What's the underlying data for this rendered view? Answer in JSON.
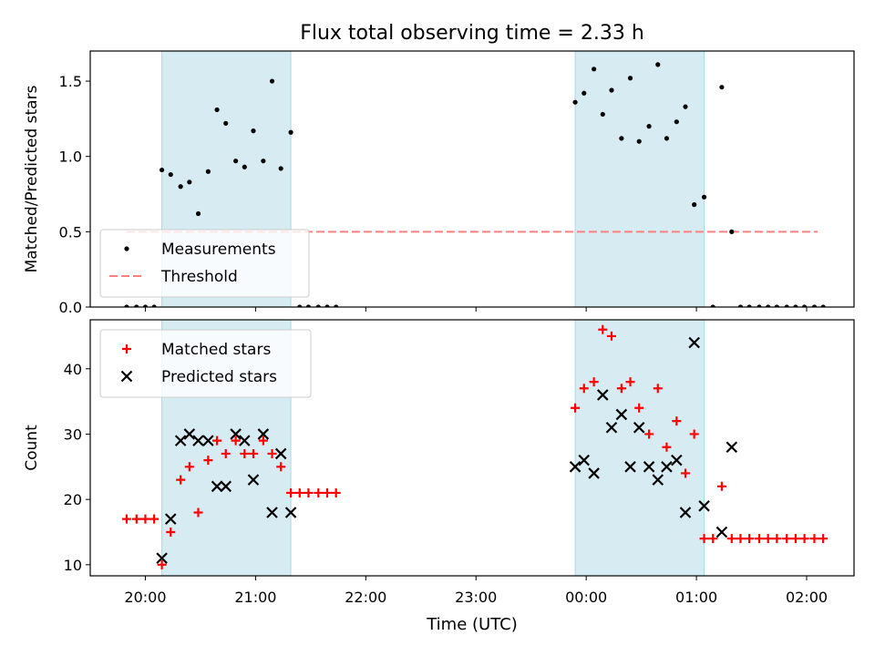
{
  "chart_data": {
    "title": "Flux total observing time = 2.33 h",
    "xlabel": "Time (UTC)",
    "x_unit": "hours",
    "xlim": [
      19.5,
      26.43
    ],
    "xticks": [
      {
        "value": 20,
        "label": "20:00"
      },
      {
        "value": 21,
        "label": "21:00"
      },
      {
        "value": 22,
        "label": "22:00"
      },
      {
        "value": 23,
        "label": "23:00"
      },
      {
        "value": 24,
        "label": "00:00"
      },
      {
        "value": 25,
        "label": "01:00"
      },
      {
        "value": 26,
        "label": "02:00"
      }
    ],
    "shaded_intervals": [
      [
        20.15,
        21.32
      ],
      [
        23.9,
        25.07
      ]
    ],
    "shade_color": "#add8e6",
    "panels": [
      {
        "type": "scatter",
        "ylabel": "Matched/Predicted stars",
        "ylim": [
          0,
          1.7
        ],
        "yticks": [
          0,
          0.5,
          1.0,
          1.5
        ],
        "ytick_labels": [
          "0.0",
          "0.5",
          "1.0",
          "1.5"
        ],
        "threshold": {
          "value": 0.5,
          "x_range": [
            19.83,
            26.1
          ],
          "color": "#ff8080"
        },
        "legend": {
          "position": "lower-left",
          "entries": [
            "Measurements",
            "Threshold"
          ]
        },
        "series": [
          {
            "name": "Measurements",
            "marker": "dot",
            "color": "#000000",
            "points": [
              [
                19.83,
                0
              ],
              [
                19.92,
                0
              ],
              [
                20.0,
                0
              ],
              [
                20.08,
                0
              ],
              [
                20.15,
                0.91
              ],
              [
                20.23,
                0.88
              ],
              [
                20.32,
                0.8
              ],
              [
                20.4,
                0.83
              ],
              [
                20.48,
                0.62
              ],
              [
                20.57,
                0.9
              ],
              [
                20.65,
                1.31
              ],
              [
                20.73,
                1.22
              ],
              [
                20.82,
                0.97
              ],
              [
                20.9,
                0.93
              ],
              [
                20.98,
                1.17
              ],
              [
                21.07,
                0.97
              ],
              [
                21.15,
                1.5
              ],
              [
                21.23,
                0.92
              ],
              [
                21.32,
                1.16
              ],
              [
                21.4,
                0
              ],
              [
                21.48,
                0
              ],
              [
                21.57,
                0
              ],
              [
                21.65,
                0
              ],
              [
                21.73,
                0
              ],
              [
                23.9,
                1.36
              ],
              [
                23.98,
                1.42
              ],
              [
                24.07,
                1.58
              ],
              [
                24.15,
                1.28
              ],
              [
                24.23,
                1.44
              ],
              [
                24.32,
                1.12
              ],
              [
                24.4,
                1.52
              ],
              [
                24.48,
                1.1
              ],
              [
                24.57,
                1.2
              ],
              [
                24.65,
                1.61
              ],
              [
                24.73,
                1.12
              ],
              [
                24.82,
                1.23
              ],
              [
                24.9,
                1.33
              ],
              [
                24.98,
                0.68
              ],
              [
                25.07,
                0.73
              ],
              [
                25.15,
                0
              ],
              [
                25.23,
                1.46
              ],
              [
                25.32,
                0.5
              ],
              [
                25.4,
                0
              ],
              [
                25.48,
                0
              ],
              [
                25.57,
                0
              ],
              [
                25.65,
                0
              ],
              [
                25.73,
                0
              ],
              [
                25.82,
                0
              ],
              [
                25.9,
                0
              ],
              [
                25.98,
                0
              ],
              [
                26.07,
                0
              ],
              [
                26.15,
                0
              ]
            ]
          }
        ]
      },
      {
        "type": "scatter",
        "ylabel": "Count",
        "ylim": [
          8.3,
          47.5
        ],
        "yticks": [
          10,
          20,
          30,
          40
        ],
        "ytick_labels": [
          "10",
          "20",
          "30",
          "40"
        ],
        "legend": {
          "position": "upper-left",
          "entries": [
            "Matched stars",
            "Predicted stars"
          ]
        },
        "series": [
          {
            "name": "Matched stars",
            "marker": "plus",
            "color": "#ff0000",
            "points": [
              [
                19.83,
                17
              ],
              [
                19.92,
                17
              ],
              [
                20.0,
                17
              ],
              [
                20.08,
                17
              ],
              [
                20.15,
                10
              ],
              [
                20.23,
                15
              ],
              [
                20.32,
                23
              ],
              [
                20.4,
                25
              ],
              [
                20.48,
                18
              ],
              [
                20.57,
                26
              ],
              [
                20.65,
                29
              ],
              [
                20.73,
                27
              ],
              [
                20.82,
                29
              ],
              [
                20.9,
                27
              ],
              [
                20.98,
                27
              ],
              [
                21.07,
                29
              ],
              [
                21.15,
                27
              ],
              [
                21.23,
                25
              ],
              [
                21.32,
                21
              ],
              [
                21.4,
                21
              ],
              [
                21.48,
                21
              ],
              [
                21.57,
                21
              ],
              [
                21.65,
                21
              ],
              [
                21.73,
                21
              ],
              [
                23.9,
                34
              ],
              [
                23.98,
                37
              ],
              [
                24.07,
                38
              ],
              [
                24.15,
                46
              ],
              [
                24.23,
                45
              ],
              [
                24.32,
                37
              ],
              [
                24.4,
                38
              ],
              [
                24.48,
                34
              ],
              [
                24.57,
                30
              ],
              [
                24.65,
                37
              ],
              [
                24.73,
                28
              ],
              [
                24.82,
                32
              ],
              [
                24.9,
                24
              ],
              [
                24.98,
                30
              ],
              [
                25.07,
                14
              ],
              [
                25.15,
                14
              ],
              [
                25.23,
                22
              ],
              [
                25.32,
                14
              ],
              [
                25.4,
                14
              ],
              [
                25.48,
                14
              ],
              [
                25.57,
                14
              ],
              [
                25.65,
                14
              ],
              [
                25.73,
                14
              ],
              [
                25.82,
                14
              ],
              [
                25.9,
                14
              ],
              [
                25.98,
                14
              ],
              [
                26.07,
                14
              ],
              [
                26.15,
                14
              ]
            ]
          },
          {
            "name": "Predicted stars",
            "marker": "x",
            "color": "#000000",
            "points": [
              [
                20.15,
                11
              ],
              [
                20.23,
                17
              ],
              [
                20.32,
                29
              ],
              [
                20.4,
                30
              ],
              [
                20.48,
                29
              ],
              [
                20.57,
                29
              ],
              [
                20.65,
                22
              ],
              [
                20.73,
                22
              ],
              [
                20.82,
                30
              ],
              [
                20.9,
                29
              ],
              [
                20.98,
                23
              ],
              [
                21.07,
                30
              ],
              [
                21.15,
                18
              ],
              [
                21.23,
                27
              ],
              [
                21.32,
                18
              ],
              [
                23.9,
                25
              ],
              [
                23.98,
                26
              ],
              [
                24.07,
                24
              ],
              [
                24.15,
                36
              ],
              [
                24.23,
                31
              ],
              [
                24.32,
                33
              ],
              [
                24.4,
                25
              ],
              [
                24.48,
                31
              ],
              [
                24.57,
                25
              ],
              [
                24.65,
                23
              ],
              [
                24.73,
                25
              ],
              [
                24.82,
                26
              ],
              [
                24.9,
                18
              ],
              [
                24.98,
                44
              ],
              [
                25.07,
                19
              ],
              [
                25.23,
                15
              ],
              [
                25.32,
                28
              ]
            ]
          }
        ]
      }
    ]
  }
}
